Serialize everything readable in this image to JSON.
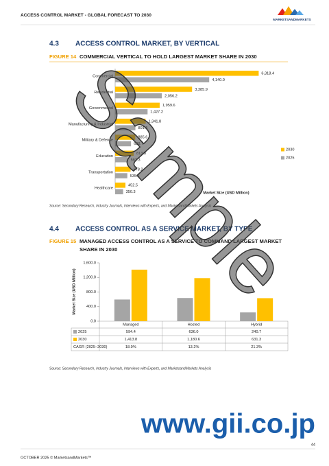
{
  "header": {
    "title": "ACCESS CONTROL MARKET - GLOBAL FORECAST TO 2030",
    "logo": "MARKETSANDMARKETS"
  },
  "section_1": {
    "number": "4.3",
    "title": "ACCESS CONTROL MARKET, BY VERTICAL"
  },
  "figure_14": {
    "label": "FIGURE 14",
    "title": "COMMERCIAL VERTICAL TO HOLD LARGEST MARKET SHARE IN 2030",
    "type": "bar",
    "orientation": "horizontal",
    "categories": [
      "Commercial",
      "Residential",
      "Governmental",
      "Manufacturing & Industrial",
      "Military & Defense",
      "Education",
      "Transportation",
      "Healthcare"
    ],
    "series": [
      {
        "name": "2030",
        "color": "#ffc000",
        "values": [
          6318.4,
          3385.9,
          1959.6,
          1341.8,
          885.6,
          813.8,
          678.2,
          452.5
        ],
        "value_labels": [
          "6,318.4",
          "3,385.9",
          "1,959.6",
          "1,341.8",
          "885.6",
          "813.8",
          "678.2",
          "452.5"
        ]
      },
      {
        "name": "2025",
        "color": "#a5a5a5",
        "values": [
          4140.0,
          2056.2,
          1427.2,
          891.5,
          698.7,
          562.3,
          535.1,
          350.3
        ],
        "value_labels": [
          "4,140.0",
          "2,056.2",
          "1,427.2",
          "891.5",
          "698.7",
          "562.3",
          "535.1",
          "350.3"
        ]
      }
    ],
    "xlim": [
      0,
      7000
    ],
    "x_label": "Market Size (USD Million)",
    "legend": "right"
  },
  "source_1": "Source: Secondary Research, Industry Journals, Interviews with Experts, and MarketsandMarkets Analysis",
  "section_2": {
    "number": "4.4",
    "title": "ACCESS CONTROL AS A SERVICE MARKET, BY TYPE"
  },
  "figure_15": {
    "label": "FIGURE 15",
    "title_lines": [
      "MANAGED ACCESS CONTROL AS A SERVICE TO COMMAND LARGEST MARKET",
      "SHARE IN 2030"
    ],
    "type": "bar",
    "categories": [
      "Managed",
      "Hosted",
      "Hybrid"
    ],
    "series": [
      {
        "name": "2025",
        "color": "#a5a5a5",
        "values": [
          594.4,
          636.0,
          240.7
        ],
        "value_labels": [
          "594.4",
          "636.0",
          "240.7"
        ]
      },
      {
        "name": "2030",
        "color": "#ffc000",
        "values": [
          1413.8,
          1180.6,
          631.3
        ],
        "value_labels": [
          "1,413.8",
          "1,180.6",
          "631.3"
        ]
      }
    ],
    "ylim": [
      0,
      1600
    ],
    "yticks": [
      {
        "value": 0,
        "label": "0.0"
      },
      {
        "value": 400,
        "label": "400.0"
      },
      {
        "value": 800,
        "label": "800.0"
      },
      {
        "value": 1200,
        "label": "1,200.0"
      },
      {
        "value": 1600,
        "label": "1,600.0"
      }
    ],
    "y_label": "Market Size (USD Million)",
    "grid": false,
    "cagr": {
      "label": "CAGR (2025–2030)",
      "values": [
        "18.9%",
        "13.2%",
        "21.3%"
      ]
    }
  },
  "source_2": "Source: Secondary Research, Industry Journals, Interviews with Experts, and MarketsandMarkets Analysis",
  "watermarks": [
    "Sample",
    "www.gii.co.jp"
  ],
  "footer": {
    "text": "OCTOBER 2025 © MarketsandMarkets™",
    "page": "44"
  }
}
